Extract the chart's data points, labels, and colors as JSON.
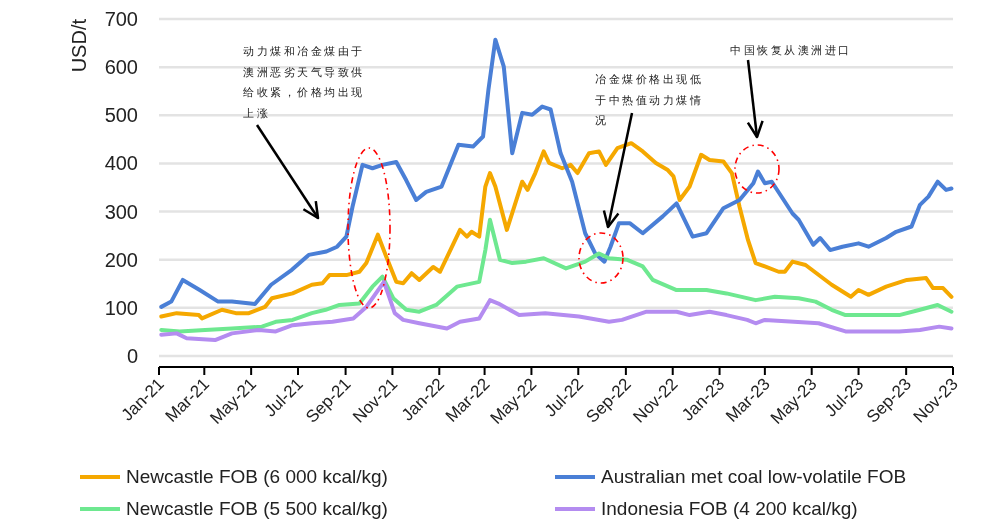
{
  "chart_data": {
    "type": "line",
    "ylabel": "USD/t",
    "ylim": [
      0,
      700
    ],
    "yticks": [
      0,
      100,
      200,
      300,
      400,
      500,
      600,
      700
    ],
    "xlim": [
      "2021-01-01",
      "2023-11-01"
    ],
    "xticks": [
      {
        "value": "2021-01",
        "label": "Jan-21"
      },
      {
        "value": "2021-03",
        "label": "Mar-21"
      },
      {
        "value": "2021-05",
        "label": "May-21"
      },
      {
        "value": "2021-07",
        "label": "Jul-21"
      },
      {
        "value": "2021-09",
        "label": "Sep-21"
      },
      {
        "value": "2021-11",
        "label": "Nov-21"
      },
      {
        "value": "2022-01",
        "label": "Jan-22"
      },
      {
        "value": "2022-03",
        "label": "Mar-22"
      },
      {
        "value": "2022-05",
        "label": "May-22"
      },
      {
        "value": "2022-07",
        "label": "Jul-22"
      },
      {
        "value": "2022-09",
        "label": "Sep-22"
      },
      {
        "value": "2022-11",
        "label": "Nov-22"
      },
      {
        "value": "2023-01",
        "label": "Jan-23"
      },
      {
        "value": "2023-03",
        "label": "Mar-23"
      },
      {
        "value": "2023-05",
        "label": "May-23"
      },
      {
        "value": "2023-07",
        "label": "Jul-23"
      },
      {
        "value": "2023-09",
        "label": "Sep-23"
      },
      {
        "value": "2023-11",
        "label": "Nov-23"
      }
    ],
    "grid": "y",
    "legend": "bottom",
    "series": [
      {
        "name": "Newcastle FOB (6 000 kcal/kg)",
        "color": "#f5a800",
        "x": [
          "2021-01-04",
          "2021-01-24",
          "2021-02-22",
          "2021-02-26",
          "2021-03-24",
          "2021-04-11",
          "2021-04-28",
          "2021-05-19",
          "2021-05-28",
          "2021-06-24",
          "2021-07-19",
          "2021-08-02",
          "2021-08-11",
          "2021-09-02",
          "2021-09-19",
          "2021-09-28",
          "2021-10-13",
          "2021-10-24",
          "2021-11-06",
          "2021-11-15",
          "2021-11-26",
          "2021-12-06",
          "2021-12-24",
          "2022-01-02",
          "2022-01-28",
          "2022-02-06",
          "2022-02-12",
          "2022-02-22",
          "2022-03-02",
          "2022-03-08",
          "2022-03-15",
          "2022-03-30",
          "2022-04-19",
          "2022-04-26",
          "2022-05-06",
          "2022-05-17",
          "2022-05-24",
          "2022-06-10",
          "2022-06-21",
          "2022-06-30",
          "2022-07-15",
          "2022-07-28",
          "2022-08-06",
          "2022-08-21",
          "2022-09-08",
          "2022-09-23",
          "2022-10-10",
          "2022-10-25",
          "2022-11-02",
          "2022-11-10",
          "2022-11-23",
          "2022-12-08",
          "2022-12-19",
          "2023-01-06",
          "2023-01-17",
          "2023-01-27",
          "2023-02-07",
          "2023-02-17",
          "2023-03-01",
          "2023-03-19",
          "2023-03-27",
          "2023-04-06",
          "2023-04-23",
          "2023-05-27",
          "2023-06-21",
          "2023-07-01",
          "2023-07-14",
          "2023-08-06",
          "2023-09-02",
          "2023-09-27",
          "2023-10-06",
          "2023-10-19",
          "2023-10-30"
        ],
        "values": [
          82,
          89,
          85,
          78,
          96,
          89,
          89,
          102,
          120,
          130,
          148,
          151,
          168,
          168,
          175,
          193,
          252,
          206,
          154,
          151,
          172,
          158,
          185,
          175,
          262,
          248,
          258,
          248,
          352,
          380,
          352,
          262,
          362,
          345,
          380,
          425,
          401,
          390,
          397,
          380,
          421,
          425,
          397,
          432,
          442,
          425,
          401,
          387,
          373,
          324,
          352,
          418,
          407,
          404,
          380,
          310,
          241,
          193,
          186,
          175,
          175,
          196,
          189,
          148,
          123,
          137,
          127,
          144,
          158,
          162,
          141,
          141,
          123
        ]
      },
      {
        "name": "Australian met coal low-volatile FOB",
        "color": "#4a7fd6",
        "x": [
          "2021-01-04",
          "2021-01-17",
          "2021-02-01",
          "2021-02-23",
          "2021-03-19",
          "2021-04-06",
          "2021-05-06",
          "2021-05-27",
          "2021-06-23",
          "2021-07-15",
          "2021-08-07",
          "2021-08-21",
          "2021-09-02",
          "2021-09-10",
          "2021-09-23",
          "2021-10-06",
          "2021-10-19",
          "2021-11-06",
          "2021-11-19",
          "2021-12-02",
          "2021-12-15",
          "2022-01-04",
          "2022-01-26",
          "2022-02-14",
          "2022-02-27",
          "2022-03-06",
          "2022-03-15",
          "2022-03-26",
          "2022-04-06",
          "2022-04-19",
          "2022-05-02",
          "2022-05-15",
          "2022-05-26",
          "2022-06-08",
          "2022-06-23",
          "2022-07-10",
          "2022-07-23",
          "2022-08-04",
          "2022-08-12",
          "2022-08-23",
          "2022-09-06",
          "2022-09-23",
          "2022-10-19",
          "2022-11-06",
          "2022-11-27",
          "2022-12-15",
          "2023-01-06",
          "2023-01-27",
          "2023-02-14",
          "2023-02-20",
          "2023-03-01",
          "2023-03-10",
          "2023-04-06",
          "2023-04-14",
          "2023-05-03",
          "2023-05-12",
          "2023-05-25",
          "2023-06-10",
          "2023-07-01",
          "2023-07-14",
          "2023-08-06",
          "2023-08-19",
          "2023-09-08",
          "2023-09-19",
          "2023-09-30",
          "2023-10-12",
          "2023-10-23",
          "2023-10-30"
        ],
        "values": [
          102,
          113,
          158,
          137,
          113,
          113,
          108,
          148,
          179,
          210,
          217,
          227,
          248,
          310,
          397,
          390,
          397,
          403,
          365,
          324,
          341,
          352,
          439,
          435,
          456,
          553,
          657,
          601,
          421,
          505,
          501,
          518,
          512,
          421,
          362,
          255,
          213,
          196,
          227,
          276,
          276,
          255,
          290,
          317,
          248,
          255,
          307,
          324,
          359,
          383,
          359,
          362,
          296,
          283,
          231,
          245,
          220,
          227,
          234,
          227,
          245,
          258,
          269,
          314,
          331,
          362,
          345,
          348
        ]
      },
      {
        "name": "Newcastle FOB (5 500 kcal/kg)",
        "color": "#6ee890",
        "x": [
          "2021-01-04",
          "2021-01-28",
          "2021-03-02",
          "2021-04-06",
          "2021-05-15",
          "2021-06-02",
          "2021-06-24",
          "2021-07-19",
          "2021-08-06",
          "2021-08-24",
          "2021-09-19",
          "2021-10-06",
          "2021-10-19",
          "2021-11-02",
          "2021-11-19",
          "2021-12-06",
          "2021-12-28",
          "2022-01-24",
          "2022-02-22",
          "2022-03-02",
          "2022-03-08",
          "2022-03-21",
          "2022-04-06",
          "2022-04-24",
          "2022-05-17",
          "2022-06-15",
          "2022-07-10",
          "2022-07-28",
          "2022-08-10",
          "2022-09-02",
          "2022-09-23",
          "2022-10-06",
          "2022-11-06",
          "2022-12-15",
          "2023-01-10",
          "2023-02-17",
          "2023-03-14",
          "2023-04-14",
          "2023-05-06",
          "2023-05-27",
          "2023-06-14",
          "2023-07-23",
          "2023-08-23",
          "2023-09-19",
          "2023-10-12",
          "2023-10-30"
        ],
        "values": [
          54,
          51,
          54,
          57,
          61,
          71,
          75,
          89,
          96,
          106,
          109,
          144,
          165,
          120,
          96,
          92,
          106,
          144,
          154,
          220,
          283,
          200,
          193,
          196,
          203,
          182,
          196,
          213,
          203,
          200,
          186,
          158,
          137,
          137,
          130,
          116,
          123,
          120,
          113,
          96,
          85,
          85,
          85,
          96,
          106,
          92
        ]
      },
      {
        "name": "Indonesia FOB (4 200 kcal/kg)",
        "color": "#b48cf0",
        "x": [
          "2021-01-04",
          "2021-01-24",
          "2021-02-06",
          "2021-03-15",
          "2021-04-06",
          "2021-05-11",
          "2021-06-02",
          "2021-06-24",
          "2021-07-19",
          "2021-08-15",
          "2021-09-11",
          "2021-09-28",
          "2021-10-21",
          "2021-11-04",
          "2021-11-15",
          "2021-12-06",
          "2022-01-11",
          "2022-01-28",
          "2022-02-22",
          "2022-03-08",
          "2022-03-19",
          "2022-04-15",
          "2022-05-19",
          "2022-07-02",
          "2022-08-10",
          "2022-08-27",
          "2022-09-28",
          "2022-11-06",
          "2022-11-23",
          "2022-12-19",
          "2023-01-10",
          "2023-02-06",
          "2023-02-17",
          "2023-03-01",
          "2023-05-10",
          "2023-06-14",
          "2023-07-23",
          "2023-08-23",
          "2023-09-19",
          "2023-10-14",
          "2023-10-30"
        ],
        "values": [
          44,
          47,
          37,
          33,
          47,
          54,
          51,
          64,
          68,
          71,
          78,
          102,
          154,
          89,
          75,
          68,
          57,
          71,
          78,
          116,
          109,
          85,
          89,
          82,
          71,
          75,
          92,
          92,
          85,
          92,
          85,
          75,
          68,
          75,
          68,
          51,
          51,
          51,
          54,
          61,
          57
        ]
      }
    ],
    "annotations": [
      "动力煤和冶金煤由于澳洲恶劣天气导致供给收紧，价格均出现上涨",
      "冶金煤价格出现低于中热值动力煤情况",
      "中国恢复从澳洲进口"
    ]
  }
}
